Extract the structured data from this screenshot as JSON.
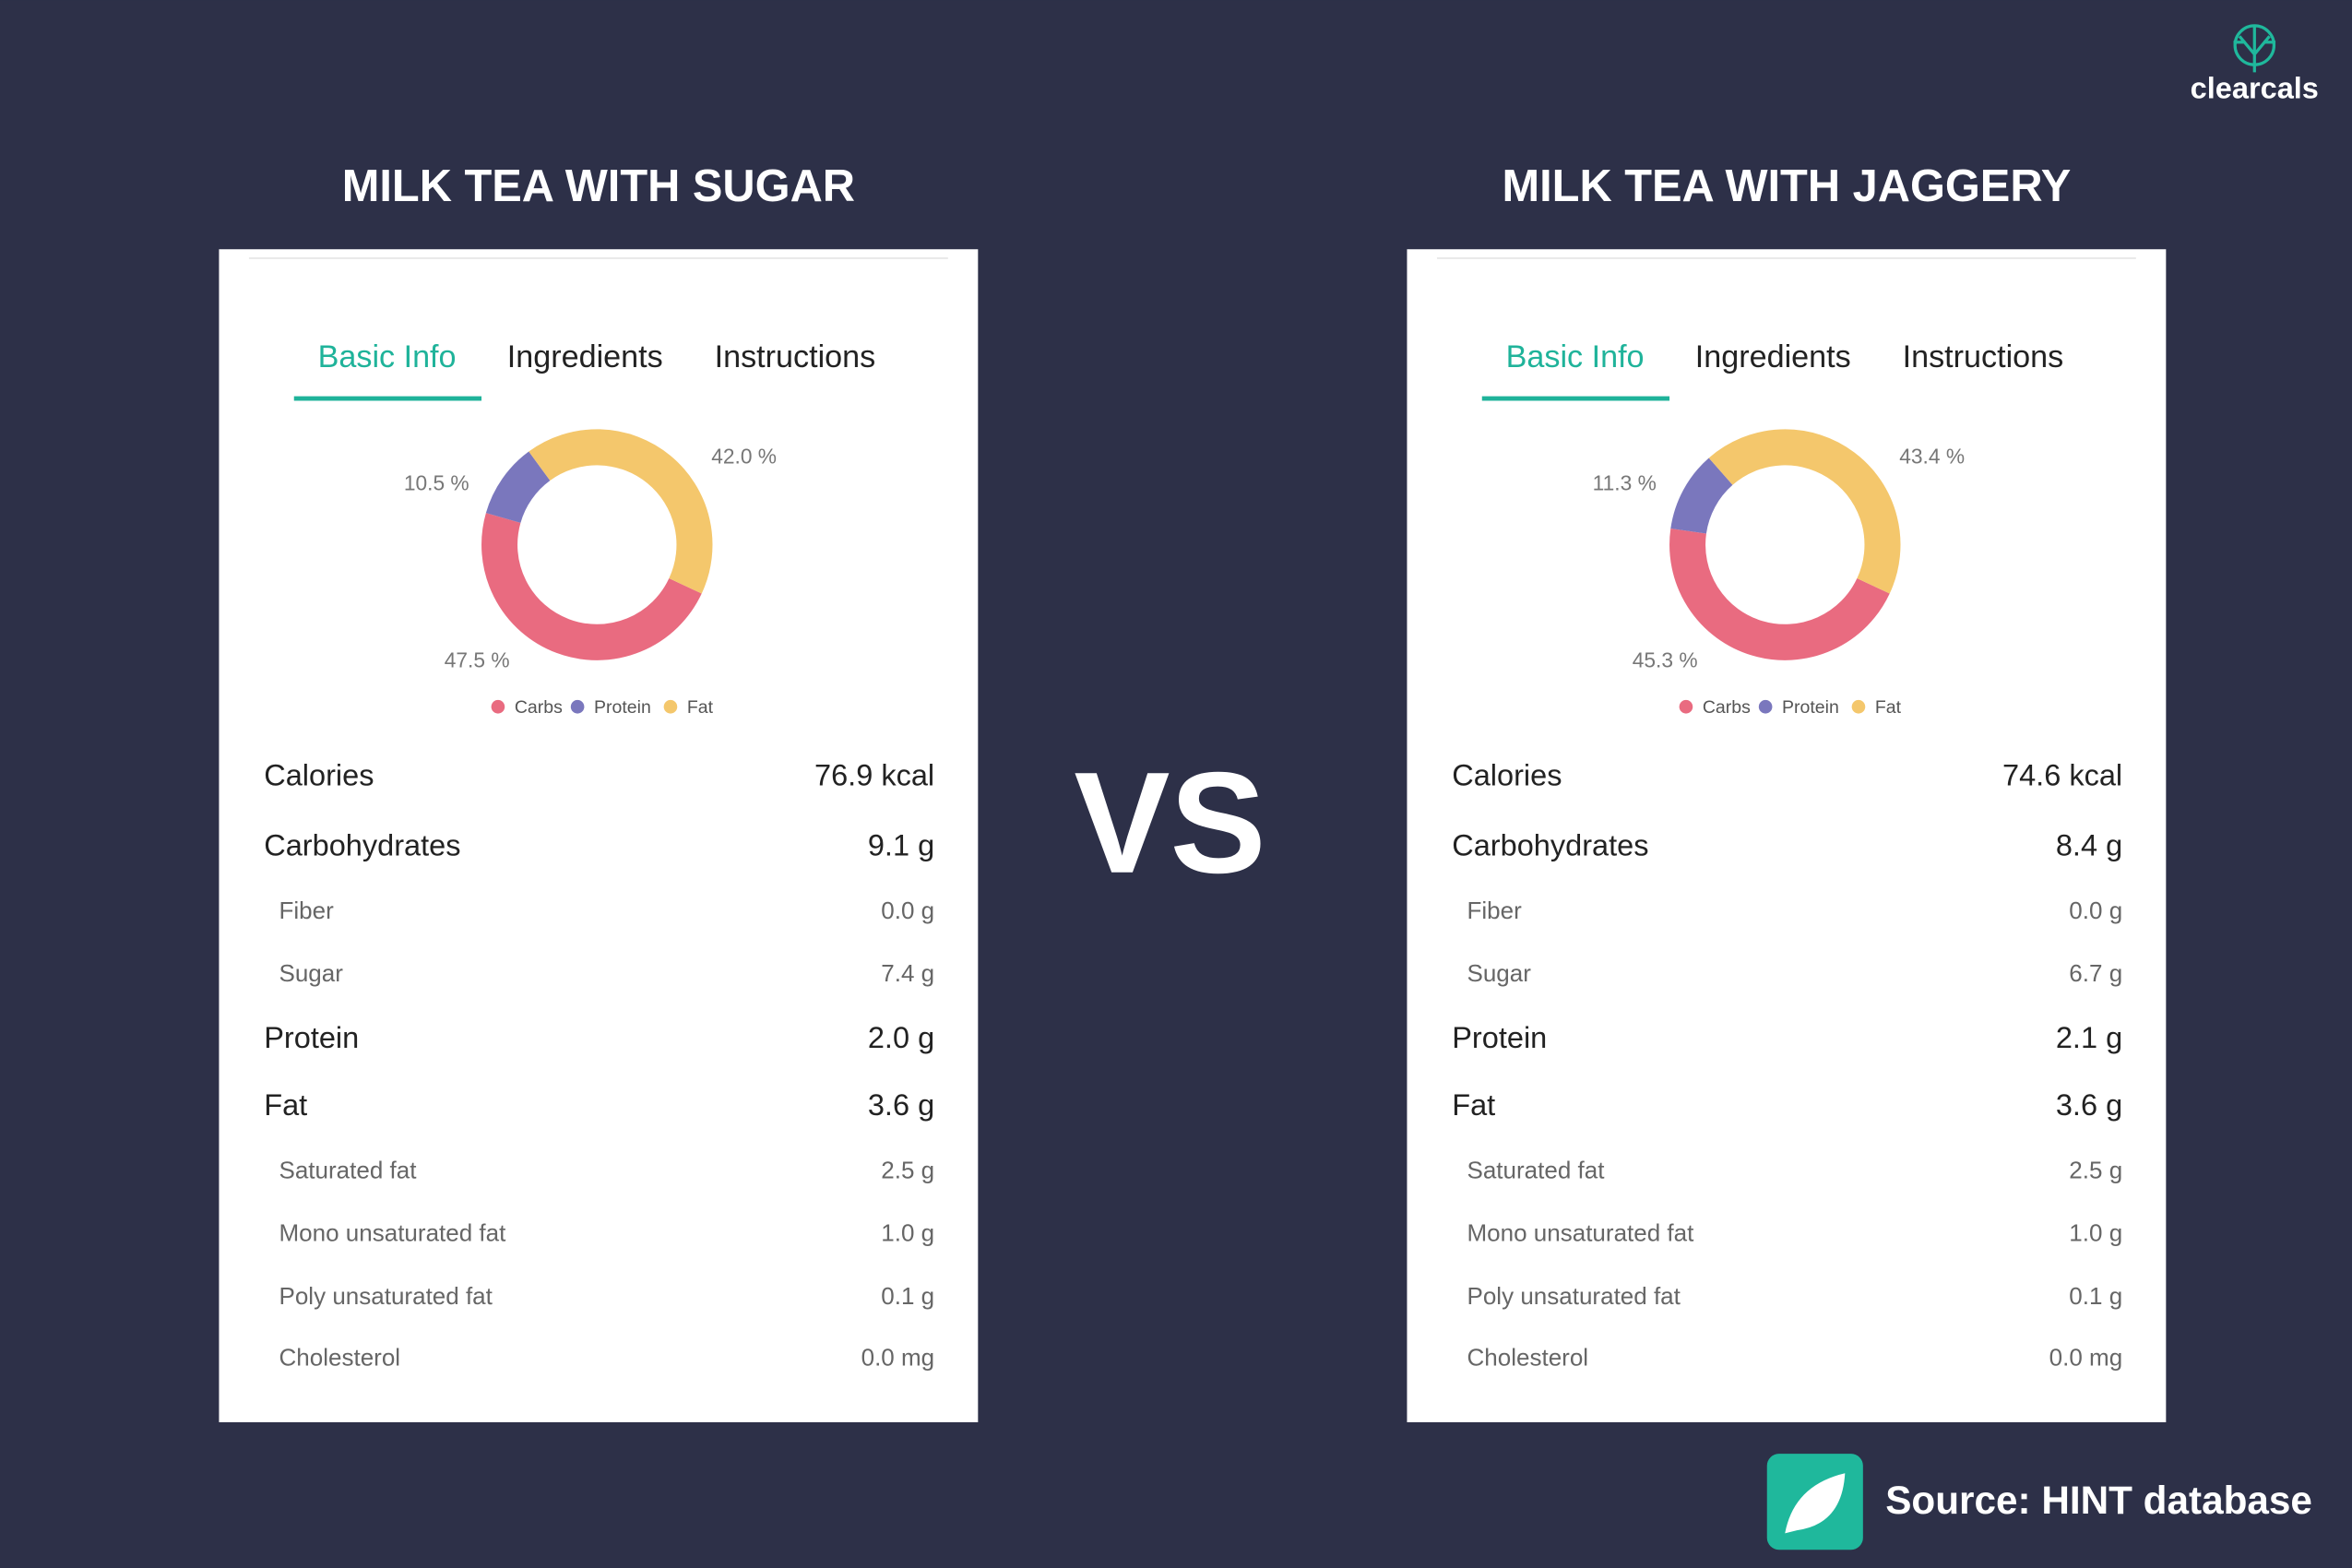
{
  "brand": "clearcals",
  "vs": "VS",
  "source": "Source: HINT database",
  "chart_data": [
    {
      "type": "pie",
      "donut": true,
      "title": "MILK TEA WITH SUGAR",
      "categories": [
        "Carbs",
        "Protein",
        "Fat"
      ],
      "values": [
        47.5,
        10.5,
        42.0
      ],
      "value_labels": [
        "47.5 %",
        "10.5 %",
        "42.0 %"
      ],
      "colors": [
        "#e96b80",
        "#7a77bd",
        "#f4c76c"
      ]
    },
    {
      "type": "pie",
      "donut": true,
      "title": "MILK TEA WITH JAGGERY",
      "categories": [
        "Carbs",
        "Protein",
        "Fat"
      ],
      "values": [
        45.3,
        11.3,
        43.4
      ],
      "value_labels": [
        "45.3 %",
        "11.3 %",
        "43.4 %"
      ],
      "colors": [
        "#e96b80",
        "#7a77bd",
        "#f4c76c"
      ]
    }
  ],
  "panels": [
    {
      "tabs": [
        "Basic Info",
        "Ingredients",
        "Instructions"
      ],
      "rows": [
        {
          "label": "Calories",
          "value": "76.9 kcal",
          "level": "main"
        },
        {
          "label": "Carbohydrates",
          "value": "9.1 g",
          "level": "main"
        },
        {
          "label": "Fiber",
          "value": "0.0 g",
          "level": "sub"
        },
        {
          "label": "Sugar",
          "value": "7.4 g",
          "level": "sub"
        },
        {
          "label": "Protein",
          "value": "2.0 g",
          "level": "main"
        },
        {
          "label": "Fat",
          "value": "3.6 g",
          "level": "main"
        },
        {
          "label": "Saturated fat",
          "value": "2.5 g",
          "level": "sub"
        },
        {
          "label": "Mono unsaturated fat",
          "value": "1.0 g",
          "level": "sub"
        },
        {
          "label": "Poly unsaturated fat",
          "value": "0.1 g",
          "level": "sub"
        },
        {
          "label": "Cholesterol",
          "value": "0.0 mg",
          "level": "sub"
        }
      ]
    },
    {
      "tabs": [
        "Basic Info",
        "Ingredients",
        "Instructions"
      ],
      "rows": [
        {
          "label": "Calories",
          "value": "74.6 kcal",
          "level": "main"
        },
        {
          "label": "Carbohydrates",
          "value": "8.4 g",
          "level": "main"
        },
        {
          "label": "Fiber",
          "value": "0.0 g",
          "level": "sub"
        },
        {
          "label": "Sugar",
          "value": "6.7 g",
          "level": "sub"
        },
        {
          "label": "Protein",
          "value": "2.1 g",
          "level": "main"
        },
        {
          "label": "Fat",
          "value": "3.6 g",
          "level": "main"
        },
        {
          "label": "Saturated fat",
          "value": "2.5 g",
          "level": "sub"
        },
        {
          "label": "Mono unsaturated fat",
          "value": "1.0 g",
          "level": "sub"
        },
        {
          "label": "Poly unsaturated fat",
          "value": "0.1 g",
          "level": "sub"
        },
        {
          "label": "Cholesterol",
          "value": "0.0 mg",
          "level": "sub"
        }
      ]
    }
  ]
}
